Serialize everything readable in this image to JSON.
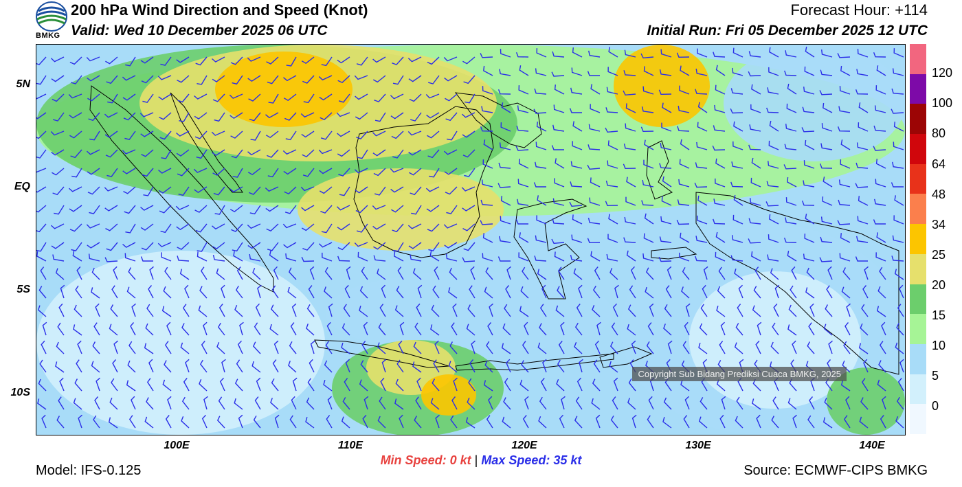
{
  "header": {
    "logo_text": "BMKG",
    "title": "200 hPa Wind Direction and Speed (Knot)",
    "valid": "Valid: Wed 10 December 2025 06 UTC",
    "forecast_hour": "Forecast Hour: +114",
    "initial_run": "Initial Run: Fri 05 December 2025 12 UTC"
  },
  "map": {
    "lat_labels": [
      "5N",
      "EQ",
      "5S",
      "10S"
    ],
    "lon_labels": [
      "100E",
      "110E",
      "120E",
      "130E",
      "140E"
    ],
    "copyright": "Copyright Sub Bidang Prediksi Cuaca BMKG, 2025",
    "barb_color": "#2a2ee8"
  },
  "legend": {
    "labels": [
      "120",
      "100",
      "80",
      "64",
      "48",
      "34",
      "25",
      "20",
      "15",
      "10",
      "5",
      "0"
    ],
    "colors": [
      "#f2667f",
      "#7d0aa8",
      "#9c0505",
      "#d0060c",
      "#e8321a",
      "#fb7f4c",
      "#fcc500",
      "#e6e06c",
      "#6cce6c",
      "#a6f496",
      "#a8dcf8",
      "#d2f0fc",
      "#f0f8ff"
    ]
  },
  "footer": {
    "min_label": "Min Speed:",
    "min_value": "0 kt",
    "separator": "|",
    "max_label": "Max Speed:",
    "max_value": "35 kt",
    "model": "Model: IFS-0.125",
    "source": "Source: ECMWF-CIPS BMKG"
  }
}
